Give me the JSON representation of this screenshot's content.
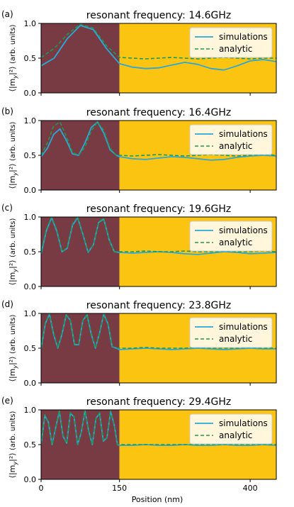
{
  "figure": {
    "xlabel": "Position (nm)",
    "ylabel_main": "⟨|m",
    "ylabel_sub": "y",
    "ylabel_tail": "|²⟩",
    "ylabel_units": "(arb. units)",
    "colors": {
      "left_region": "#793b43",
      "right_region": "#fbc411",
      "simulation_line": "#2aa8d8",
      "analytic_line": "#1a9a55"
    }
  },
  "chart_data": [
    {
      "type": "line",
      "panel_label": "(a)",
      "title": "resonant frequency: 14.6GHz",
      "xlim": [
        0,
        450
      ],
      "ylim": [
        0,
        1
      ],
      "xticks": [
        0,
        150,
        400
      ],
      "xtick_labels": [
        "0",
        "150",
        "400"
      ],
      "yticks": [
        0,
        0.5,
        1
      ],
      "ytick_labels": [
        "0.0",
        "0.5",
        "1.0"
      ],
      "regions": [
        {
          "x_range": [
            0,
            150
          ],
          "color": "#793b43"
        },
        {
          "x_range": [
            150,
            450
          ],
          "color": "#fbc411"
        }
      ],
      "legend_position": "upper right",
      "series": [
        {
          "name": "simulations",
          "style": "solid",
          "color": "#2aa8d8",
          "x": [
            0,
            25,
            50,
            75,
            100,
            125,
            150,
            175,
            200,
            225,
            250,
            275,
            300,
            325,
            350,
            375,
            400,
            425,
            450
          ],
          "y": [
            0.39,
            0.5,
            0.78,
            0.97,
            0.91,
            0.64,
            0.42,
            0.37,
            0.35,
            0.36,
            0.4,
            0.44,
            0.41,
            0.35,
            0.33,
            0.39,
            0.46,
            0.48,
            0.45
          ]
        },
        {
          "name": "analytic",
          "style": "dashed",
          "color": "#1a9a55",
          "x": [
            0,
            25,
            50,
            75,
            100,
            125,
            150,
            175,
            200,
            225,
            250,
            275,
            300,
            325,
            350,
            375,
            400,
            425,
            450
          ],
          "y": [
            0.51,
            0.64,
            0.84,
            0.99,
            0.93,
            0.68,
            0.51,
            0.5,
            0.49,
            0.5,
            0.51,
            0.5,
            0.49,
            0.5,
            0.51,
            0.5,
            0.49,
            0.5,
            0.5
          ]
        }
      ]
    },
    {
      "type": "line",
      "panel_label": "(b)",
      "title": "resonant frequency: 16.4GHz",
      "xlim": [
        0,
        450
      ],
      "ylim": [
        0,
        1
      ],
      "xticks": [
        0,
        150,
        400
      ],
      "xtick_labels": [
        "0",
        "150",
        "400"
      ],
      "yticks": [
        0,
        0.5,
        1
      ],
      "ytick_labels": [
        "0.0",
        "0.5",
        "1.0"
      ],
      "regions": [
        {
          "x_range": [
            0,
            150
          ],
          "color": "#793b43"
        },
        {
          "x_range": [
            150,
            450
          ],
          "color": "#fbc411"
        }
      ],
      "legend_position": "upper right",
      "series": [
        {
          "name": "simulations",
          "style": "solid",
          "color": "#2aa8d8",
          "x": [
            0,
            12,
            24,
            36,
            48,
            60,
            72,
            84,
            96,
            108,
            120,
            132,
            144,
            150,
            175,
            200,
            225,
            250,
            275,
            300,
            325,
            350,
            375,
            400,
            425,
            450
          ],
          "y": [
            0.48,
            0.6,
            0.8,
            0.88,
            0.72,
            0.52,
            0.5,
            0.68,
            0.9,
            0.98,
            0.82,
            0.58,
            0.5,
            0.48,
            0.45,
            0.44,
            0.46,
            0.48,
            0.47,
            0.45,
            0.43,
            0.44,
            0.47,
            0.49,
            0.5,
            0.49
          ]
        },
        {
          "name": "analytic",
          "style": "dashed",
          "color": "#1a9a55",
          "x": [
            0,
            12,
            24,
            36,
            48,
            60,
            72,
            84,
            96,
            108,
            120,
            132,
            144,
            150,
            175,
            200,
            225,
            250,
            275,
            300,
            325,
            350,
            375,
            400,
            425,
            450
          ],
          "y": [
            0.5,
            0.68,
            0.92,
            0.98,
            0.78,
            0.54,
            0.5,
            0.62,
            0.85,
            0.98,
            0.86,
            0.6,
            0.5,
            0.5,
            0.49,
            0.5,
            0.51,
            0.5,
            0.49,
            0.5,
            0.51,
            0.5,
            0.49,
            0.5,
            0.51,
            0.5
          ]
        }
      ]
    },
    {
      "type": "line",
      "panel_label": "(c)",
      "title": "resonant frequency: 19.6GHz",
      "xlim": [
        0,
        450
      ],
      "ylim": [
        0,
        1
      ],
      "xticks": [
        0,
        150,
        400
      ],
      "xtick_labels": [
        "0",
        "150",
        "400"
      ],
      "yticks": [
        0,
        0.5,
        1
      ],
      "ytick_labels": [
        "0.0",
        "0.5",
        "1.0"
      ],
      "regions": [
        {
          "x_range": [
            0,
            150
          ],
          "color": "#793b43"
        },
        {
          "x_range": [
            150,
            450
          ],
          "color": "#fbc411"
        }
      ],
      "legend_position": "upper right",
      "series": [
        {
          "name": "simulations",
          "style": "solid",
          "color": "#2aa8d8",
          "x": [
            0,
            10,
            20,
            30,
            40,
            50,
            60,
            70,
            80,
            90,
            100,
            110,
            120,
            130,
            140,
            150,
            175,
            200,
            225,
            250,
            275,
            300,
            325,
            350,
            375,
            400,
            425,
            450
          ],
          "y": [
            0.47,
            0.8,
            0.99,
            0.8,
            0.5,
            0.55,
            0.88,
            0.99,
            0.75,
            0.49,
            0.6,
            0.92,
            0.97,
            0.68,
            0.5,
            0.49,
            0.48,
            0.49,
            0.5,
            0.49,
            0.47,
            0.46,
            0.48,
            0.5,
            0.49,
            0.47,
            0.48,
            0.49
          ]
        },
        {
          "name": "analytic",
          "style": "dashed",
          "color": "#1a9a55",
          "x": [
            0,
            10,
            20,
            30,
            40,
            50,
            60,
            70,
            80,
            90,
            100,
            110,
            120,
            130,
            140,
            150,
            175,
            200,
            225,
            250,
            275,
            300,
            325,
            350,
            375,
            400,
            425,
            450
          ],
          "y": [
            0.5,
            0.82,
            1.0,
            0.82,
            0.5,
            0.56,
            0.9,
            1.0,
            0.76,
            0.5,
            0.6,
            0.93,
            0.98,
            0.68,
            0.5,
            0.5,
            0.5,
            0.51,
            0.5,
            0.5,
            0.51,
            0.5,
            0.5,
            0.51,
            0.5,
            0.5,
            0.51,
            0.5
          ]
        }
      ]
    },
    {
      "type": "line",
      "panel_label": "(d)",
      "title": "resonant frequency: 23.8GHz",
      "xlim": [
        0,
        450
      ],
      "ylim": [
        0,
        1
      ],
      "xticks": [
        0,
        150,
        400
      ],
      "xtick_labels": [
        "0",
        "150",
        "400"
      ],
      "yticks": [
        0,
        0.5,
        1
      ],
      "ytick_labels": [
        "0.0",
        "0.5",
        "1.0"
      ],
      "regions": [
        {
          "x_range": [
            0,
            150
          ],
          "color": "#793b43"
        },
        {
          "x_range": [
            150,
            450
          ],
          "color": "#fbc411"
        }
      ],
      "legend_position": "upper right",
      "series": [
        {
          "name": "simulations",
          "style": "solid",
          "color": "#2aa8d8",
          "x": [
            0,
            8,
            16,
            24,
            32,
            40,
            48,
            56,
            64,
            72,
            80,
            88,
            96,
            104,
            112,
            120,
            128,
            136,
            144,
            150,
            175,
            200,
            225,
            250,
            275,
            300,
            325,
            350,
            375,
            400,
            425,
            450
          ],
          "y": [
            0.49,
            0.85,
            0.99,
            0.7,
            0.5,
            0.7,
            0.98,
            0.9,
            0.55,
            0.55,
            0.9,
            0.98,
            0.7,
            0.5,
            0.72,
            0.99,
            0.85,
            0.52,
            0.5,
            0.48,
            0.49,
            0.5,
            0.49,
            0.48,
            0.49,
            0.5,
            0.49,
            0.48,
            0.49,
            0.5,
            0.49,
            0.49
          ]
        },
        {
          "name": "analytic",
          "style": "dashed",
          "color": "#1a9a55",
          "x": [
            0,
            8,
            16,
            24,
            32,
            40,
            48,
            56,
            64,
            72,
            80,
            88,
            96,
            104,
            112,
            120,
            128,
            136,
            144,
            150,
            175,
            200,
            225,
            250,
            275,
            300,
            325,
            350,
            375,
            400,
            425,
            450
          ],
          "y": [
            0.5,
            0.86,
            1.0,
            0.72,
            0.5,
            0.72,
            0.99,
            0.9,
            0.56,
            0.56,
            0.9,
            0.99,
            0.72,
            0.5,
            0.72,
            1.0,
            0.86,
            0.53,
            0.5,
            0.5,
            0.5,
            0.51,
            0.5,
            0.5,
            0.5,
            0.51,
            0.5,
            0.5,
            0.5,
            0.51,
            0.5,
            0.5
          ]
        }
      ]
    },
    {
      "type": "line",
      "panel_label": "(e)",
      "title": "resonant frequency: 29.4GHz",
      "xlim": [
        0,
        450
      ],
      "ylim": [
        0,
        1
      ],
      "xticks": [
        0,
        150,
        400
      ],
      "xtick_labels": [
        "0",
        "150",
        "400"
      ],
      "yticks": [
        0,
        0.5,
        1
      ],
      "ytick_labels": [
        "0.0",
        "0.5",
        "1.0"
      ],
      "regions": [
        {
          "x_range": [
            0,
            150
          ],
          "color": "#793b43"
        },
        {
          "x_range": [
            150,
            450
          ],
          "color": "#fbc411"
        }
      ],
      "legend_position": "upper right",
      "series": [
        {
          "name": "simulations",
          "style": "solid",
          "color": "#2aa8d8",
          "x": [
            0,
            7,
            14,
            21,
            28,
            35,
            42,
            49,
            56,
            63,
            70,
            77,
            84,
            91,
            98,
            105,
            112,
            119,
            126,
            133,
            140,
            146,
            150,
            175,
            200,
            225,
            250,
            275,
            300,
            325,
            350,
            375,
            400,
            425,
            450
          ],
          "y": [
            0.5,
            0.92,
            0.82,
            0.5,
            0.75,
            0.98,
            0.62,
            0.52,
            0.95,
            0.9,
            0.5,
            0.68,
            0.99,
            0.7,
            0.5,
            0.88,
            0.95,
            0.55,
            0.6,
            0.98,
            0.78,
            0.5,
            0.49,
            0.49,
            0.5,
            0.49,
            0.49,
            0.5,
            0.49,
            0.49,
            0.5,
            0.49,
            0.49,
            0.5,
            0.49
          ]
        },
        {
          "name": "analytic",
          "style": "dashed",
          "color": "#1a9a55",
          "x": [
            0,
            7,
            14,
            21,
            28,
            35,
            42,
            49,
            56,
            63,
            70,
            77,
            84,
            91,
            98,
            105,
            112,
            119,
            126,
            133,
            140,
            146,
            150,
            175,
            200,
            225,
            250,
            275,
            300,
            325,
            350,
            375,
            400,
            425,
            450
          ],
          "y": [
            0.5,
            0.93,
            0.83,
            0.5,
            0.76,
            0.99,
            0.63,
            0.52,
            0.96,
            0.9,
            0.5,
            0.69,
            1.0,
            0.71,
            0.5,
            0.88,
            0.96,
            0.56,
            0.6,
            0.99,
            0.79,
            0.5,
            0.5,
            0.5,
            0.5,
            0.5,
            0.5,
            0.5,
            0.5,
            0.5,
            0.5,
            0.5,
            0.5,
            0.5,
            0.5
          ]
        }
      ]
    }
  ]
}
